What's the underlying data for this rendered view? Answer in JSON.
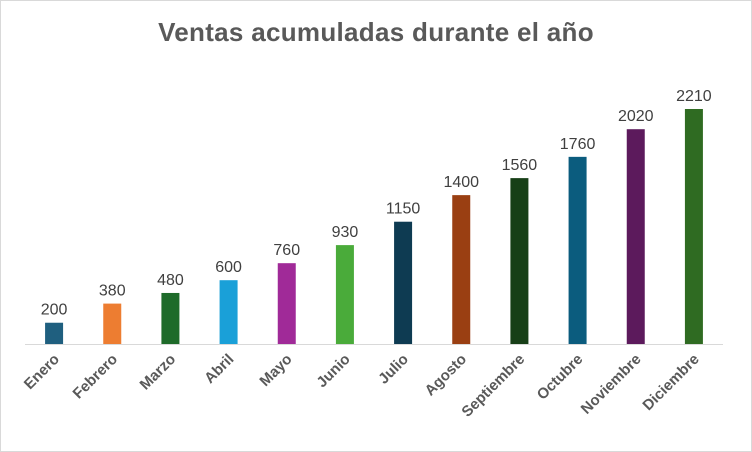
{
  "chart_data": {
    "type": "bar",
    "title": "Ventas acumuladas durante el año",
    "xlabel": "",
    "ylabel": "",
    "categories": [
      "Enero",
      "Febrero",
      "Marzo",
      "Abril",
      "Mayo",
      "Junio",
      "Julio",
      "Agosto",
      "Septiembre",
      "Octubre",
      "Noviembre",
      "Diciembre"
    ],
    "values": [
      200,
      380,
      480,
      600,
      760,
      930,
      1150,
      1400,
      1560,
      1760,
      2020,
      2210
    ],
    "colors": [
      "#1f5f7f",
      "#ed7d31",
      "#1e6b2a",
      "#1aa0d8",
      "#a02a98",
      "#4aab3a",
      "#0e3b52",
      "#9a3f12",
      "#173f17",
      "#0b5c7e",
      "#5c1a5c",
      "#2f6b22"
    ],
    "ylim": [
      0,
      2210
    ],
    "grid": false,
    "legend": "none",
    "data_labels": true
  }
}
